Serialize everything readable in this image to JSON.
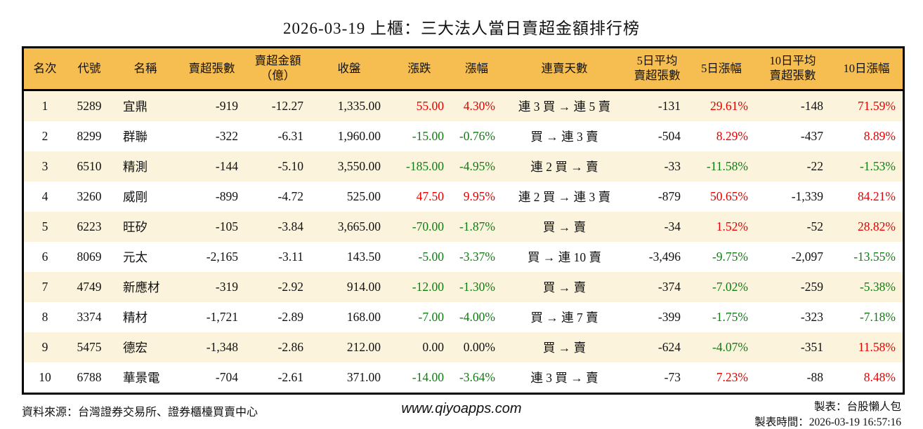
{
  "title": "2026-03-19 上櫃：三大法人當日賣超金額排行榜",
  "colors": {
    "header_bg": "#f6bd50",
    "row_stripe": "#fcf3dc",
    "up": "#e60000",
    "down": "#0e7d12",
    "border": "#000000",
    "text": "#111111"
  },
  "table": {
    "columns": [
      {
        "id": "rank",
        "label": "名次"
      },
      {
        "id": "code",
        "label": "代號"
      },
      {
        "id": "name",
        "label": "名稱"
      },
      {
        "id": "sell_volume",
        "label": "賣超張數"
      },
      {
        "id": "sell_amount",
        "label": "賣超金額",
        "label2": "（億）"
      },
      {
        "id": "close",
        "label": "收盤"
      },
      {
        "id": "change",
        "label": "漲跌"
      },
      {
        "id": "change_pct",
        "label": "漲幅"
      },
      {
        "id": "streak",
        "label": "連賣天數"
      },
      {
        "id": "avg5",
        "label": "5日平均",
        "label2": "賣超張數"
      },
      {
        "id": "pct5",
        "label": "5日漲幅"
      },
      {
        "id": "avg10",
        "label": "10日平均",
        "label2": "賣超張數"
      },
      {
        "id": "pct10",
        "label": "10日漲幅"
      }
    ],
    "signed_color_columns": [
      "change",
      "change_pct",
      "pct5",
      "pct10"
    ],
    "rows": [
      {
        "rank": "1",
        "code": "5289",
        "name": "宜鼎",
        "sell_volume": "-919",
        "sell_amount": "-12.27",
        "close": "1,335.00",
        "change": "55.00",
        "change_pct": "4.30%",
        "streak": "連 3 買 → 連 5 賣",
        "avg5": "-131",
        "pct5": "29.61%",
        "avg10": "-148",
        "pct10": "71.59%"
      },
      {
        "rank": "2",
        "code": "8299",
        "name": "群聯",
        "sell_volume": "-322",
        "sell_amount": "-6.31",
        "close": "1,960.00",
        "change": "-15.00",
        "change_pct": "-0.76%",
        "streak": "買 → 連 3 賣",
        "avg5": "-504",
        "pct5": "8.29%",
        "avg10": "-437",
        "pct10": "8.89%"
      },
      {
        "rank": "3",
        "code": "6510",
        "name": "精測",
        "sell_volume": "-144",
        "sell_amount": "-5.10",
        "close": "3,550.00",
        "change": "-185.00",
        "change_pct": "-4.95%",
        "streak": "連 2 買 → 賣",
        "avg5": "-33",
        "pct5": "-11.58%",
        "avg10": "-22",
        "pct10": "-1.53%"
      },
      {
        "rank": "4",
        "code": "3260",
        "name": "威剛",
        "sell_volume": "-899",
        "sell_amount": "-4.72",
        "close": "525.00",
        "change": "47.50",
        "change_pct": "9.95%",
        "streak": "連 2 買 → 連 3 賣",
        "avg5": "-879",
        "pct5": "50.65%",
        "avg10": "-1,339",
        "pct10": "84.21%"
      },
      {
        "rank": "5",
        "code": "6223",
        "name": "旺矽",
        "sell_volume": "-105",
        "sell_amount": "-3.84",
        "close": "3,665.00",
        "change": "-70.00",
        "change_pct": "-1.87%",
        "streak": "買 → 賣",
        "avg5": "-34",
        "pct5": "1.52%",
        "avg10": "-52",
        "pct10": "28.82%"
      },
      {
        "rank": "6",
        "code": "8069",
        "name": "元太",
        "sell_volume": "-2,165",
        "sell_amount": "-3.11",
        "close": "143.50",
        "change": "-5.00",
        "change_pct": "-3.37%",
        "streak": "買 → 連 10 賣",
        "avg5": "-3,496",
        "pct5": "-9.75%",
        "avg10": "-2,097",
        "pct10": "-13.55%"
      },
      {
        "rank": "7",
        "code": "4749",
        "name": "新應材",
        "sell_volume": "-319",
        "sell_amount": "-2.92",
        "close": "914.00",
        "change": "-12.00",
        "change_pct": "-1.30%",
        "streak": "買 → 賣",
        "avg5": "-374",
        "pct5": "-7.02%",
        "avg10": "-259",
        "pct10": "-5.38%"
      },
      {
        "rank": "8",
        "code": "3374",
        "name": "精材",
        "sell_volume": "-1,721",
        "sell_amount": "-2.89",
        "close": "168.00",
        "change": "-7.00",
        "change_pct": "-4.00%",
        "streak": "買 → 連 7 賣",
        "avg5": "-399",
        "pct5": "-1.75%",
        "avg10": "-323",
        "pct10": "-7.18%"
      },
      {
        "rank": "9",
        "code": "5475",
        "name": "德宏",
        "sell_volume": "-1,348",
        "sell_amount": "-2.86",
        "close": "212.00",
        "change": "0.00",
        "change_pct": "0.00%",
        "streak": "買 → 賣",
        "avg5": "-624",
        "pct5": "-4.07%",
        "avg10": "-351",
        "pct10": "11.58%"
      },
      {
        "rank": "10",
        "code": "6788",
        "name": "華景電",
        "sell_volume": "-704",
        "sell_amount": "-2.61",
        "close": "371.00",
        "change": "-14.00",
        "change_pct": "-3.64%",
        "streak": "連 3 買 → 賣",
        "avg5": "-73",
        "pct5": "7.23%",
        "avg10": "-88",
        "pct10": "8.48%"
      }
    ]
  },
  "footer": {
    "source": "資料來源：台灣證券交易所、證券櫃檯買賣中心",
    "website": "www.qiyoapps.com",
    "made_by": "製表：台股懶人包",
    "made_time": "製表時間：2026-03-19 16:57:16"
  }
}
